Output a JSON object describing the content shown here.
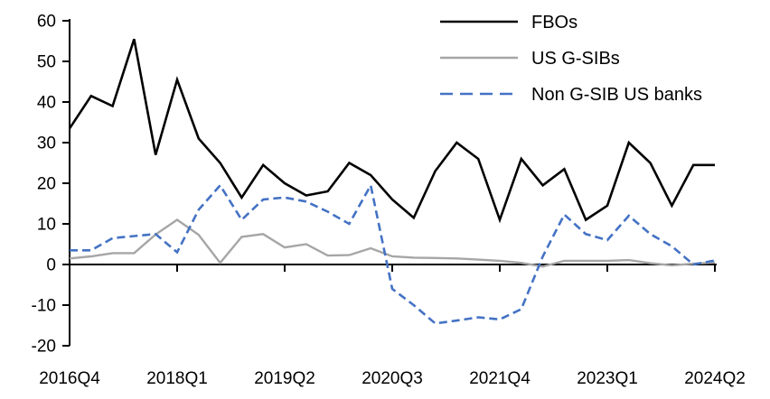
{
  "chart_data": {
    "type": "line",
    "title": "",
    "xlabel": "",
    "ylabel": "",
    "grid": false,
    "legend_position": "top-right",
    "ylim": [
      -20,
      60
    ],
    "y_ticks": [
      60,
      50,
      40,
      30,
      20,
      10,
      0,
      -10,
      -20
    ],
    "x_tick_labels": [
      "2016Q4",
      "2018Q1",
      "2019Q2",
      "2020Q3",
      "2021Q4",
      "2023Q1",
      "2024Q2"
    ],
    "categories": [
      "2016Q4",
      "2017Q1",
      "2017Q2",
      "2017Q3",
      "2017Q4",
      "2018Q1",
      "2018Q2",
      "2018Q3",
      "2018Q4",
      "2019Q1",
      "2019Q2",
      "2019Q3",
      "2019Q4",
      "2020Q1",
      "2020Q2",
      "2020Q3",
      "2020Q4",
      "2021Q1",
      "2021Q2",
      "2021Q3",
      "2021Q4",
      "2022Q1",
      "2022Q2",
      "2022Q3",
      "2022Q4",
      "2023Q1",
      "2023Q2",
      "2023Q3",
      "2023Q4",
      "2024Q1",
      "2024Q2"
    ],
    "series": [
      {
        "name": "FBOs",
        "color": "#000000",
        "style": "solid",
        "values": [
          33.5,
          41.5,
          39,
          55.5,
          27,
          45.5,
          31,
          25,
          16.5,
          24.5,
          20,
          17,
          18,
          25,
          22,
          16,
          11.5,
          23,
          30,
          26,
          11,
          26,
          19.5,
          23.5,
          11,
          14.5,
          30,
          25,
          14.5,
          24.5,
          24.5
        ]
      },
      {
        "name": "US G-SIBs",
        "color": "#a6a6a6",
        "style": "solid",
        "values": [
          1.5,
          2,
          2.8,
          2.8,
          7.4,
          11,
          7.3,
          0.4,
          6.8,
          7.5,
          4.2,
          5,
          2.2,
          2.3,
          4,
          2,
          1.7,
          1.6,
          1.5,
          1.2,
          0.9,
          0.4,
          -0.5,
          0.9,
          0.9,
          0.9,
          1.1,
          0.3,
          -0.2,
          0.2,
          0.5
        ]
      },
      {
        "name": "Non G-SIB US banks",
        "color": "#4472c4",
        "style": "dashed",
        "values": [
          3.5,
          3.5,
          6.5,
          7,
          7.5,
          3,
          13.5,
          19.5,
          11,
          16,
          16.5,
          15.5,
          13,
          10,
          19.5,
          -6,
          -10,
          -14.5,
          -13.8,
          -13,
          -13.5,
          -11,
          2,
          12.3,
          7.5,
          6,
          12,
          7.5,
          4.5,
          0,
          1
        ]
      }
    ]
  }
}
